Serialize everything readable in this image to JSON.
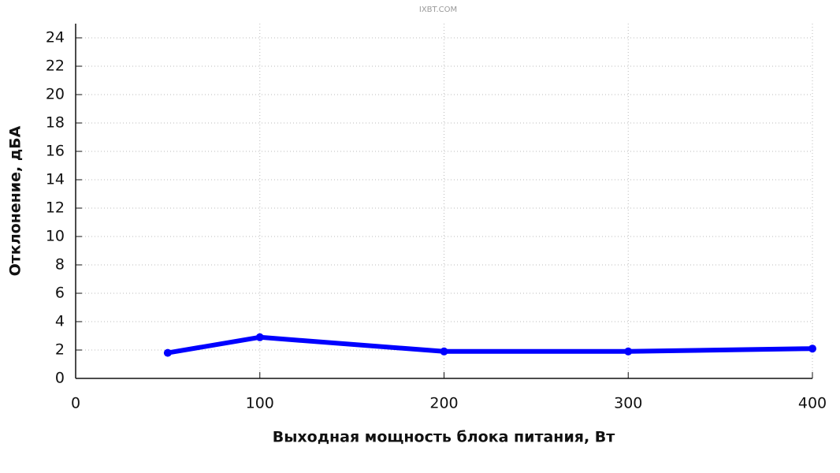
{
  "chart_data": {
    "type": "line",
    "watermark": "IXBT.COM",
    "x_label": "Выходная мощность блока питания, Вт",
    "y_label": "Отклонение, дБА",
    "x": [
      50,
      100,
      200,
      300,
      400
    ],
    "series": [
      {
        "name": "Отклонение",
        "color": "#0000ff",
        "values": [
          1.8,
          2.9,
          1.9,
          1.9,
          2.1
        ]
      }
    ],
    "xlim": [
      0,
      400
    ],
    "xticks": [
      0,
      100,
      200,
      300,
      400
    ],
    "ylim": [
      0,
      25
    ],
    "yticks": [
      0,
      2,
      4,
      6,
      8,
      10,
      12,
      14,
      16,
      18,
      20,
      22,
      24
    ],
    "grid": true
  }
}
